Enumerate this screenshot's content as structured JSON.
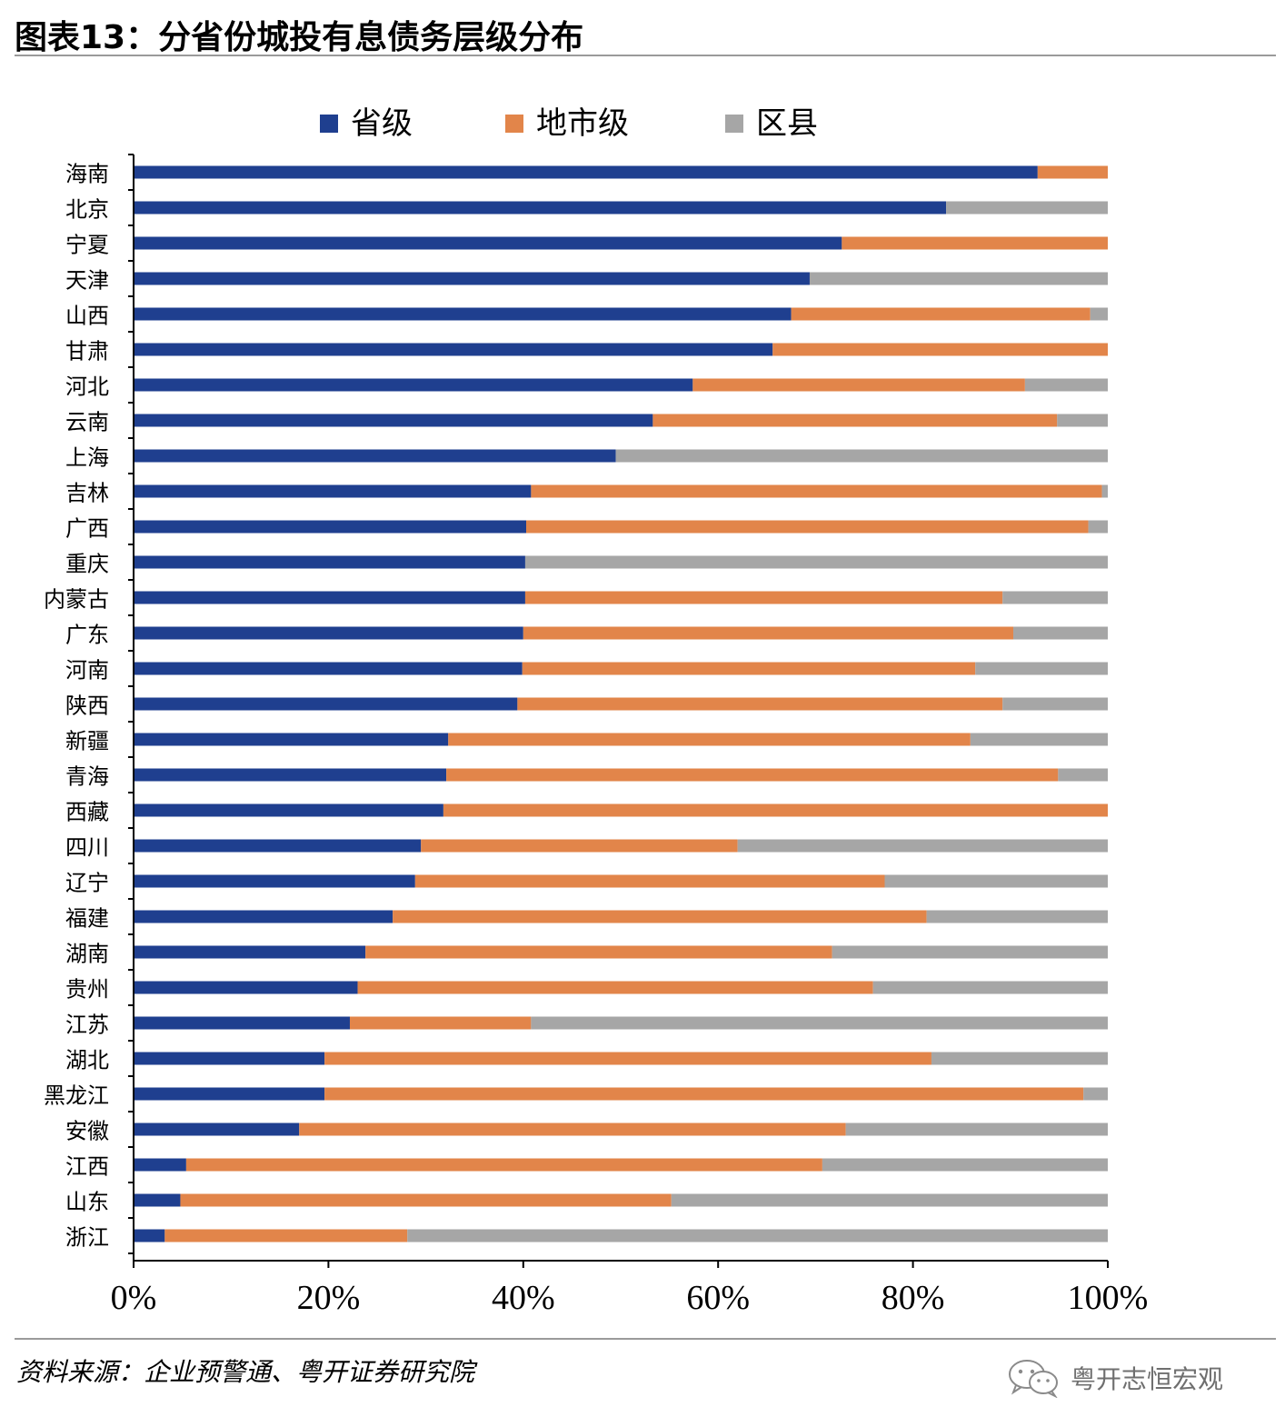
{
  "title": "图表13：分省份城投有息债务层级分布",
  "source": "资料来源：企业预警通、粤开证券研究院",
  "watermark": {
    "text": "粤开志恒宏观",
    "icon": "wechat-icon"
  },
  "chart_data": {
    "type": "bar",
    "orientation": "horizontal",
    "stacked": "percent",
    "title": "",
    "xlabel": "",
    "ylabel": "",
    "xlim": [
      0,
      100
    ],
    "x_ticks": [
      "0%",
      "20%",
      "40%",
      "60%",
      "80%",
      "100%"
    ],
    "legend_position": "top",
    "grid": false,
    "categories": [
      "海南",
      "北京",
      "宁夏",
      "天津",
      "山西",
      "甘肃",
      "河北",
      "云南",
      "上海",
      "吉林",
      "广西",
      "重庆",
      "内蒙古",
      "广东",
      "河南",
      "陕西",
      "新疆",
      "青海",
      "西藏",
      "四川",
      "辽宁",
      "福建",
      "湖南",
      "贵州",
      "江苏",
      "湖北",
      "黑龙江",
      "安徽",
      "江西",
      "山东",
      "浙江"
    ],
    "series": [
      {
        "name": "省级",
        "color": "#1f3f8f",
        "values": [
          92.8,
          83.4,
          72.7,
          69.4,
          67.5,
          65.6,
          57.4,
          53.3,
          49.5,
          40.8,
          40.3,
          40.2,
          40.2,
          40.0,
          39.9,
          39.4,
          32.3,
          32.1,
          31.8,
          29.5,
          28.9,
          26.6,
          23.8,
          23.0,
          22.2,
          19.6,
          19.6,
          17.0,
          5.4,
          4.8,
          3.2
        ]
      },
      {
        "name": "地市级",
        "color": "#e2854a",
        "values": [
          7.2,
          0.0,
          27.3,
          0.0,
          30.7,
          34.4,
          34.1,
          41.5,
          0.0,
          58.6,
          57.7,
          0.0,
          49.0,
          50.3,
          46.5,
          49.8,
          53.6,
          62.8,
          68.2,
          32.5,
          48.2,
          54.8,
          47.9,
          52.9,
          18.6,
          62.3,
          77.9,
          56.1,
          65.3,
          50.4,
          24.9
        ]
      },
      {
        "name": "区县",
        "color": "#a6a6a6",
        "values": [
          0.0,
          16.6,
          0.0,
          30.6,
          1.8,
          0.0,
          8.5,
          5.2,
          50.5,
          0.6,
          2.0,
          59.8,
          10.8,
          9.7,
          13.6,
          10.8,
          14.1,
          5.1,
          0.0,
          38.0,
          22.9,
          18.6,
          28.3,
          24.1,
          59.2,
          18.1,
          2.5,
          26.9,
          29.3,
          44.8,
          71.9
        ]
      }
    ]
  }
}
